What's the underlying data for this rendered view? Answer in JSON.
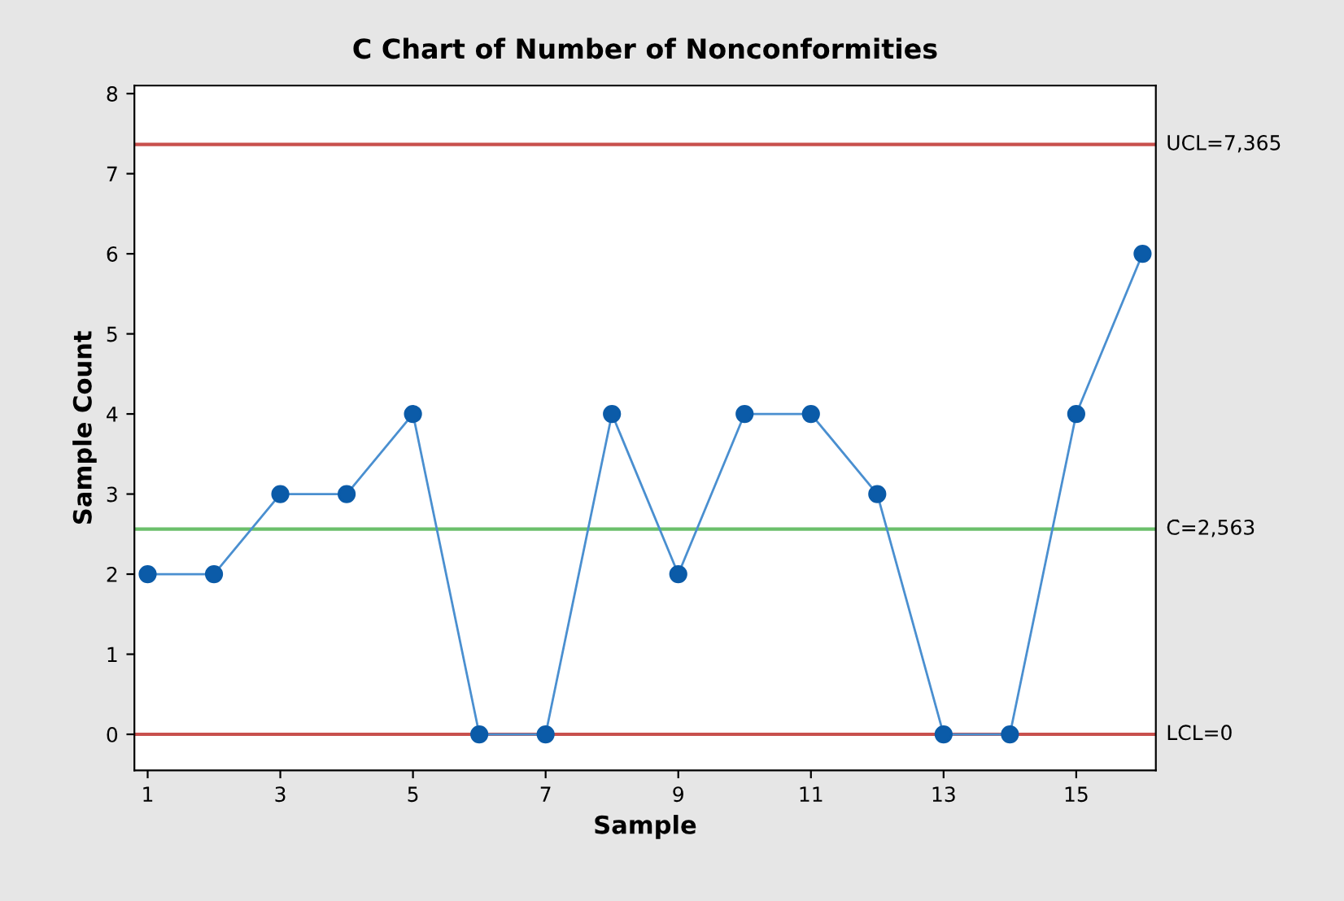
{
  "chart_data": {
    "type": "line",
    "title": "C Chart of Number of Nonconformities",
    "xlabel": "Sample",
    "ylabel": "Sample Count",
    "x": [
      1,
      2,
      3,
      4,
      5,
      6,
      7,
      8,
      9,
      10,
      11,
      12,
      13,
      14,
      15,
      16
    ],
    "series": [
      {
        "color": "#0b5ba8",
        "values": [
          2,
          2,
          3,
          3,
          4,
          0,
          0,
          4,
          2,
          4,
          4,
          3,
          0,
          0,
          4,
          6
        ]
      }
    ],
    "xlim": [
      0.8,
      16.2
    ],
    "ylim": [
      -0.45,
      8.1
    ],
    "xticks": [
      1,
      3,
      5,
      7,
      9,
      11,
      13,
      15
    ],
    "yticks": [
      0,
      1,
      2,
      3,
      4,
      5,
      6,
      7,
      8
    ],
    "ref_lines": [
      {
        "axis": "y",
        "value": 7.365,
        "label": "UCL=7,365",
        "color": "#c8504d"
      },
      {
        "axis": "y",
        "value": 2.563,
        "label": "C̄=2,563",
        "color": "#6bbf6b"
      },
      {
        "axis": "y",
        "value": 0,
        "label": "LCL=0",
        "color": "#c8504d"
      }
    ],
    "marker": "circle",
    "line_style": "solid",
    "grid": false,
    "legend": false
  }
}
